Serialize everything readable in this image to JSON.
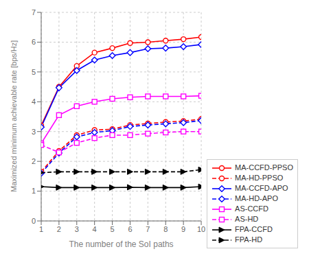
{
  "chart_data": {
    "type": "line",
    "xlabel": "The number of the SoI paths",
    "ylabel": "Maximized minimum achievable rate [bps/Hz]",
    "x": [
      1,
      2,
      3,
      4,
      5,
      6,
      7,
      8,
      9,
      10
    ],
    "xlim": [
      1,
      10
    ],
    "ylim": [
      0,
      7
    ],
    "xticks": [
      1,
      2,
      3,
      4,
      5,
      6,
      7,
      8,
      9,
      10
    ],
    "yticks": [
      0,
      1,
      2,
      3,
      4,
      5,
      6,
      7
    ],
    "grid": true,
    "legend": "lower right",
    "series": [
      {
        "name": "MA-CCFD-PPSO",
        "color": "#FF0000",
        "marker": "circle",
        "line_style": "solid",
        "values": [
          3.2,
          4.5,
          5.2,
          5.65,
          5.8,
          5.97,
          6.0,
          6.05,
          6.1,
          6.17
        ]
      },
      {
        "name": "MA-HD-PPSO",
        "color": "#FF0000",
        "marker": "circle",
        "line_style": "dashed",
        "values": [
          1.65,
          2.35,
          2.88,
          3.05,
          3.08,
          3.22,
          3.27,
          3.32,
          3.35,
          3.42
        ]
      },
      {
        "name": "MA-CCFD-APO",
        "color": "#0000FF",
        "marker": "diamond",
        "line_style": "solid",
        "values": [
          3.15,
          4.47,
          5.05,
          5.4,
          5.55,
          5.65,
          5.78,
          5.8,
          5.85,
          5.92
        ]
      },
      {
        "name": "MA-HD-APO",
        "color": "#0000FF",
        "marker": "diamond",
        "line_style": "dashed",
        "values": [
          1.6,
          2.28,
          2.82,
          2.97,
          3.03,
          3.17,
          3.22,
          3.26,
          3.3,
          3.37
        ]
      },
      {
        "name": "AS-CCFD",
        "color": "#FF00FF",
        "marker": "square",
        "line_style": "solid",
        "values": [
          2.6,
          3.55,
          3.85,
          4.0,
          4.1,
          4.15,
          4.18,
          4.18,
          4.18,
          4.2
        ]
      },
      {
        "name": "AS-HD",
        "color": "#FF00FF",
        "marker": "square",
        "line_style": "dashed",
        "values": [
          2.55,
          2.3,
          2.62,
          2.78,
          2.88,
          2.88,
          2.93,
          2.97,
          3.0,
          3.0
        ]
      },
      {
        "name": "FPA-CCFD",
        "color": "#000000",
        "marker": "triangle-right",
        "line_style": "solid",
        "values": [
          1.15,
          1.12,
          1.12,
          1.12,
          1.12,
          1.13,
          1.12,
          1.12,
          1.12,
          1.15
        ]
      },
      {
        "name": "FPA-HD",
        "color": "#000000",
        "marker": "triangle-right",
        "line_style": "dashed",
        "values": [
          1.62,
          1.65,
          1.65,
          1.65,
          1.65,
          1.65,
          1.65,
          1.65,
          1.65,
          1.72
        ]
      }
    ]
  }
}
